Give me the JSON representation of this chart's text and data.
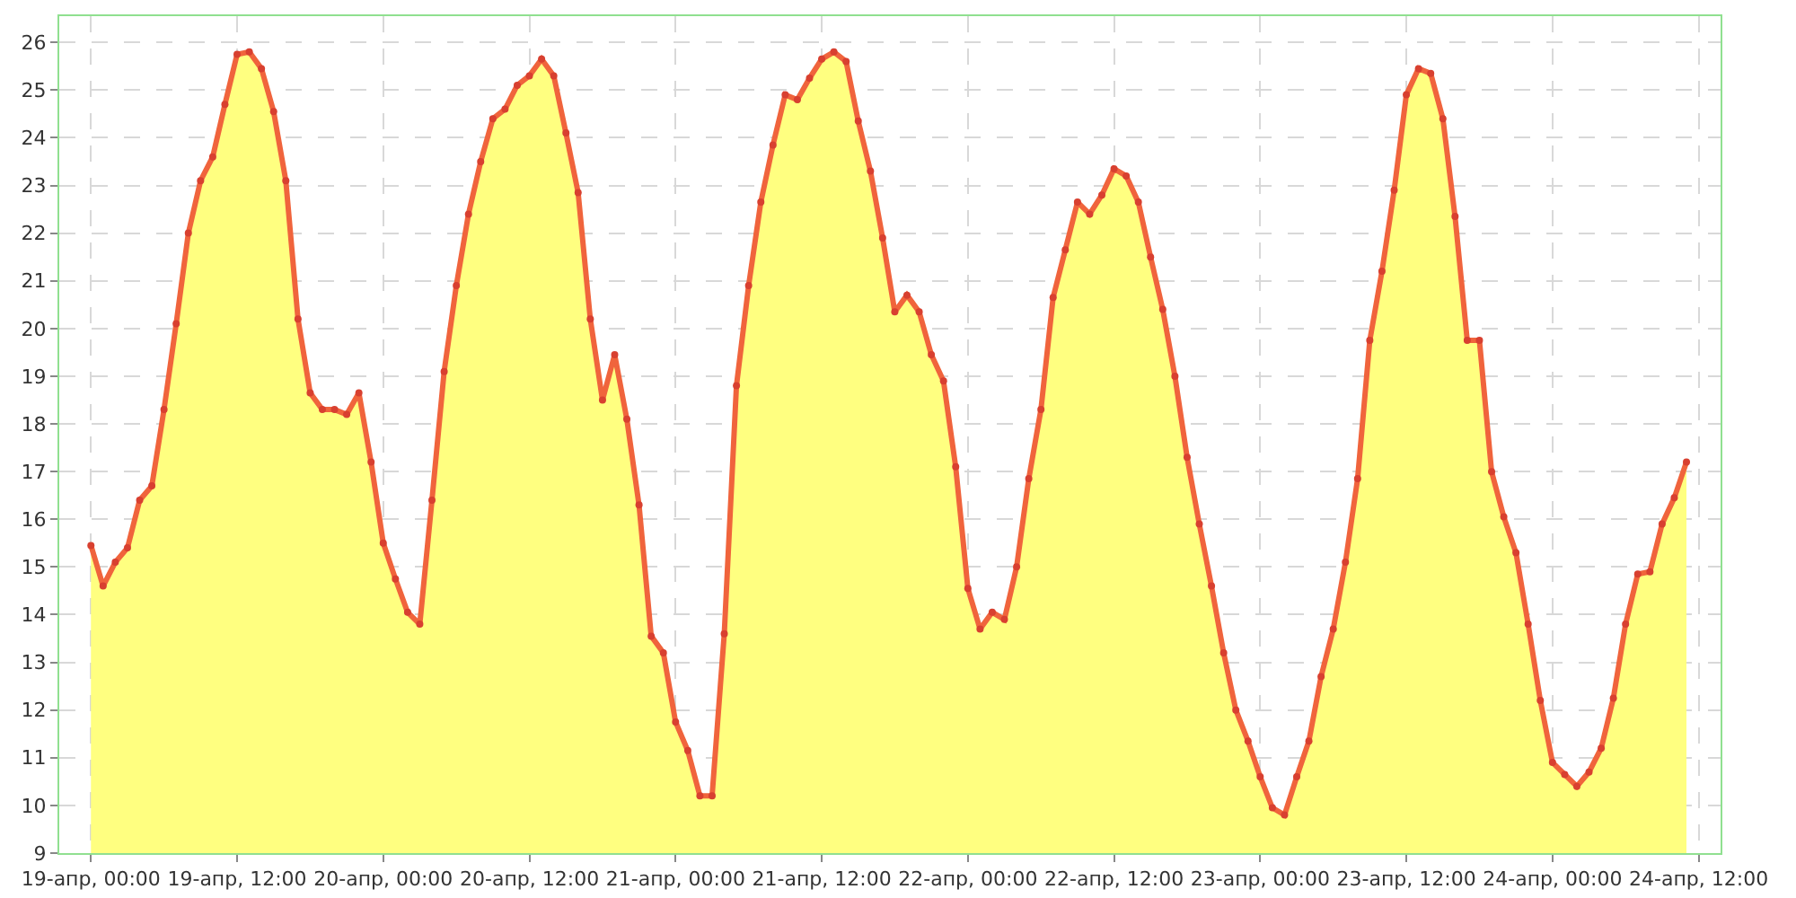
{
  "chart_data": {
    "type": "area",
    "x": [
      "--04-19T00:00",
      "--04-19T01:00",
      "--04-19T02:00",
      "--04-19T03:00",
      "--04-19T04:00",
      "--04-19T05:00",
      "--04-19T06:00",
      "--04-19T07:00",
      "--04-19T08:00",
      "--04-19T09:00",
      "--04-19T10:00",
      "--04-19T11:00",
      "--04-19T12:00",
      "--04-19T13:00",
      "--04-19T14:00",
      "--04-19T15:00",
      "--04-19T16:00",
      "--04-19T17:00",
      "--04-19T18:00",
      "--04-19T19:00",
      "--04-19T20:00",
      "--04-19T21:00",
      "--04-19T22:00",
      "--04-19T23:00",
      "--04-20T00:00",
      "--04-20T01:00",
      "--04-20T02:00",
      "--04-20T03:00",
      "--04-20T04:00",
      "--04-20T05:00",
      "--04-20T06:00",
      "--04-20T07:00",
      "--04-20T08:00",
      "--04-20T09:00",
      "--04-20T10:00",
      "--04-20T11:00",
      "--04-20T12:00",
      "--04-20T13:00",
      "--04-20T14:00",
      "--04-20T15:00",
      "--04-20T16:00",
      "--04-20T17:00",
      "--04-20T18:00",
      "--04-20T19:00",
      "--04-20T20:00",
      "--04-20T21:00",
      "--04-20T22:00",
      "--04-20T23:00",
      "--04-21T00:00",
      "--04-21T01:00",
      "--04-21T02:00",
      "--04-21T03:00",
      "--04-21T04:00",
      "--04-21T05:00",
      "--04-21T06:00",
      "--04-21T07:00",
      "--04-21T08:00",
      "--04-21T09:00",
      "--04-21T10:00",
      "--04-21T11:00",
      "--04-21T12:00",
      "--04-21T13:00",
      "--04-21T14:00",
      "--04-21T15:00",
      "--04-21T16:00",
      "--04-21T17:00",
      "--04-21T18:00",
      "--04-21T19:00",
      "--04-21T20:00",
      "--04-21T21:00",
      "--04-21T22:00",
      "--04-21T23:00",
      "--04-22T00:00",
      "--04-22T01:00",
      "--04-22T02:00",
      "--04-22T03:00",
      "--04-22T04:00",
      "--04-22T05:00",
      "--04-22T06:00",
      "--04-22T07:00",
      "--04-22T08:00",
      "--04-22T09:00",
      "--04-22T10:00",
      "--04-22T11:00",
      "--04-22T12:00",
      "--04-22T13:00",
      "--04-22T14:00",
      "--04-22T15:00",
      "--04-22T16:00",
      "--04-22T17:00",
      "--04-22T18:00",
      "--04-22T19:00",
      "--04-22T20:00",
      "--04-22T21:00",
      "--04-22T22:00",
      "--04-22T23:00",
      "--04-23T00:00",
      "--04-23T01:00",
      "--04-23T02:00",
      "--04-23T03:00",
      "--04-23T04:00",
      "--04-23T05:00",
      "--04-23T06:00",
      "--04-23T07:00",
      "--04-23T08:00",
      "--04-23T09:00",
      "--04-23T10:00",
      "--04-23T11:00",
      "--04-23T12:00",
      "--04-23T13:00",
      "--04-23T14:00",
      "--04-23T15:00",
      "--04-23T16:00",
      "--04-23T17:00",
      "--04-23T18:00",
      "--04-23T19:00",
      "--04-23T20:00",
      "--04-23T21:00",
      "--04-23T22:00",
      "--04-23T23:00",
      "--04-24T00:00",
      "--04-24T01:00",
      "--04-24T02:00",
      "--04-24T03:00",
      "--04-24T04:00",
      "--04-24T05:00",
      "--04-24T06:00",
      "--04-24T07:00",
      "--04-24T08:00",
      "--04-24T09:00",
      "--04-24T10:00",
      "--04-24T11:00"
    ],
    "series": [
      {
        "color": "#f0643c",
        "values": [
          15.45,
          14.6,
          15.1,
          15.4,
          16.4,
          16.7,
          18.3,
          20.1,
          22.0,
          23.1,
          23.6,
          24.7,
          25.75,
          25.8,
          25.45,
          24.55,
          23.1,
          20.2,
          18.65,
          18.3,
          18.3,
          18.2,
          18.65,
          17.2,
          15.5,
          14.75,
          14.05,
          13.8,
          16.4,
          19.1,
          20.9,
          22.4,
          23.5,
          24.4,
          24.6,
          25.1,
          25.3,
          25.65,
          25.3,
          24.1,
          22.85,
          20.2,
          18.5,
          19.45,
          18.1,
          16.3,
          13.55,
          13.2,
          11.75,
          11.15,
          10.2,
          10.2,
          13.6,
          18.8,
          20.9,
          22.65,
          23.85,
          24.9,
          24.8,
          25.25,
          25.65,
          25.8,
          25.6,
          24.35,
          23.3,
          21.9,
          20.35,
          20.7,
          20.35,
          19.45,
          18.9,
          17.1,
          14.55,
          13.7,
          14.05,
          13.9,
          15.0,
          16.85,
          18.3,
          20.65,
          21.65,
          22.65,
          22.4,
          22.8,
          23.35,
          23.2,
          22.65,
          21.5,
          20.4,
          19.0,
          17.3,
          15.9,
          14.6,
          13.2,
          12.0,
          11.35,
          10.6,
          9.95,
          9.8,
          10.6,
          11.35,
          12.7,
          13.7,
          15.1,
          16.85,
          19.75,
          21.2,
          22.9,
          24.9,
          25.45,
          25.35,
          24.4,
          22.35,
          19.75,
          19.75,
          17.0,
          16.05,
          15.3,
          13.8,
          12.2,
          10.9,
          10.65,
          10.4,
          10.7,
          11.2,
          12.25,
          13.8,
          14.85,
          14.9,
          15.9,
          16.45,
          17.2
        ]
      }
    ],
    "xlim": [
      "--04-18T21:24",
      "--04-24T13:48"
    ],
    "xticks": [
      {
        "value": "--04-19T00:00",
        "label": "19-апр, 00:00"
      },
      {
        "value": "--04-19T12:00",
        "label": "19-апр, 12:00"
      },
      {
        "value": "--04-20T00:00",
        "label": "20-апр, 00:00"
      },
      {
        "value": "--04-20T12:00",
        "label": "20-апр, 12:00"
      },
      {
        "value": "--04-21T00:00",
        "label": "21-апр, 00:00"
      },
      {
        "value": "--04-21T12:00",
        "label": "21-апр, 12:00"
      },
      {
        "value": "--04-22T00:00",
        "label": "22-апр, 00:00"
      },
      {
        "value": "--04-22T12:00",
        "label": "22-апр, 12:00"
      },
      {
        "value": "--04-23T00:00",
        "label": "23-апр, 00:00"
      },
      {
        "value": "--04-23T12:00",
        "label": "23-апр, 12:00"
      },
      {
        "value": "--04-24T00:00",
        "label": "24-апр, 00:00"
      },
      {
        "value": "--04-24T12:00",
        "label": "24-апр, 12:00"
      }
    ],
    "ylim": [
      9,
      26.55
    ],
    "yticks": [
      9,
      10,
      11,
      12,
      13,
      14,
      15,
      16,
      17,
      18,
      19,
      20,
      21,
      22,
      23,
      24,
      25,
      26
    ],
    "grid": true,
    "marker": "circle",
    "legend": false
  }
}
